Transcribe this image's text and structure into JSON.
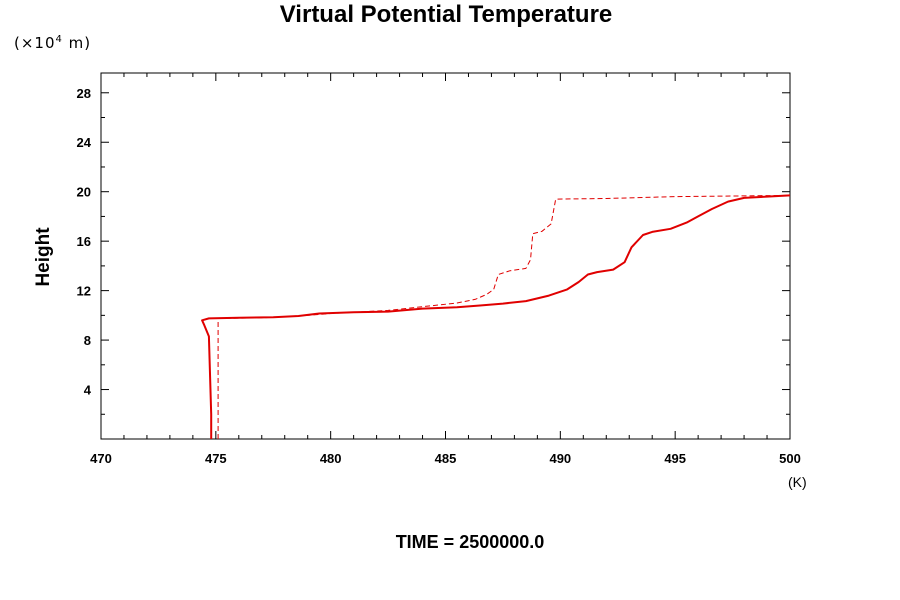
{
  "chart_data": {
    "type": "line",
    "title": "Virtual Potential Temperature",
    "ylabel": "Height",
    "yscale_note": "10",
    "yscale_exp": "4",
    "yscale_unit": "m",
    "xunit": "(K)",
    "footer": "TIME = 2500000.0",
    "xlim": [
      470,
      500
    ],
    "ylim": [
      0,
      29.6
    ],
    "xticks": [
      470,
      475,
      480,
      485,
      490,
      495,
      500
    ],
    "yticks": [
      4,
      8,
      12,
      16,
      20,
      24,
      28
    ],
    "colors": {
      "series": "#e00000",
      "axis": "#000000"
    },
    "series": [
      {
        "style": "solid",
        "points": [
          [
            474.8,
            0
          ],
          [
            474.8,
            2
          ],
          [
            474.75,
            5
          ],
          [
            474.7,
            8.3
          ],
          [
            474.5,
            9.2
          ],
          [
            474.4,
            9.6
          ],
          [
            474.7,
            9.75
          ],
          [
            476,
            9.8
          ],
          [
            477.5,
            9.85
          ],
          [
            478.6,
            9.95
          ],
          [
            479.5,
            10.15
          ],
          [
            481,
            10.25
          ],
          [
            482.5,
            10.3
          ],
          [
            484,
            10.55
          ],
          [
            485.5,
            10.65
          ],
          [
            486.5,
            10.8
          ],
          [
            487.5,
            10.95
          ],
          [
            488.5,
            11.15
          ],
          [
            489.5,
            11.6
          ],
          [
            490.3,
            12.1
          ],
          [
            490.8,
            12.7
          ],
          [
            491.2,
            13.3
          ],
          [
            491.6,
            13.5
          ],
          [
            492.3,
            13.7
          ],
          [
            492.8,
            14.3
          ],
          [
            493.1,
            15.5
          ],
          [
            493.6,
            16.5
          ],
          [
            494,
            16.75
          ],
          [
            494.8,
            17.0
          ],
          [
            495.5,
            17.5
          ],
          [
            496,
            18.0
          ],
          [
            496.6,
            18.6
          ],
          [
            497.3,
            19.2
          ],
          [
            498,
            19.5
          ],
          [
            499,
            19.6
          ],
          [
            500,
            19.7
          ]
        ]
      },
      {
        "style": "dashed",
        "points": [
          [
            475.1,
            0
          ],
          [
            475.1,
            9.75
          ],
          [
            477,
            9.8
          ],
          [
            478.6,
            9.95
          ],
          [
            480,
            10.15
          ],
          [
            482.5,
            10.4
          ],
          [
            484,
            10.7
          ],
          [
            485.5,
            11.0
          ],
          [
            486.3,
            11.3
          ],
          [
            486.8,
            11.7
          ],
          [
            487.1,
            12.1
          ],
          [
            487.3,
            13.3
          ],
          [
            487.8,
            13.6
          ],
          [
            488.5,
            13.8
          ],
          [
            488.7,
            14.5
          ],
          [
            488.8,
            16.6
          ],
          [
            489.2,
            16.8
          ],
          [
            489.6,
            17.4
          ],
          [
            489.8,
            19.4
          ],
          [
            492,
            19.45
          ],
          [
            495,
            19.6
          ],
          [
            500,
            19.7
          ]
        ]
      }
    ]
  }
}
